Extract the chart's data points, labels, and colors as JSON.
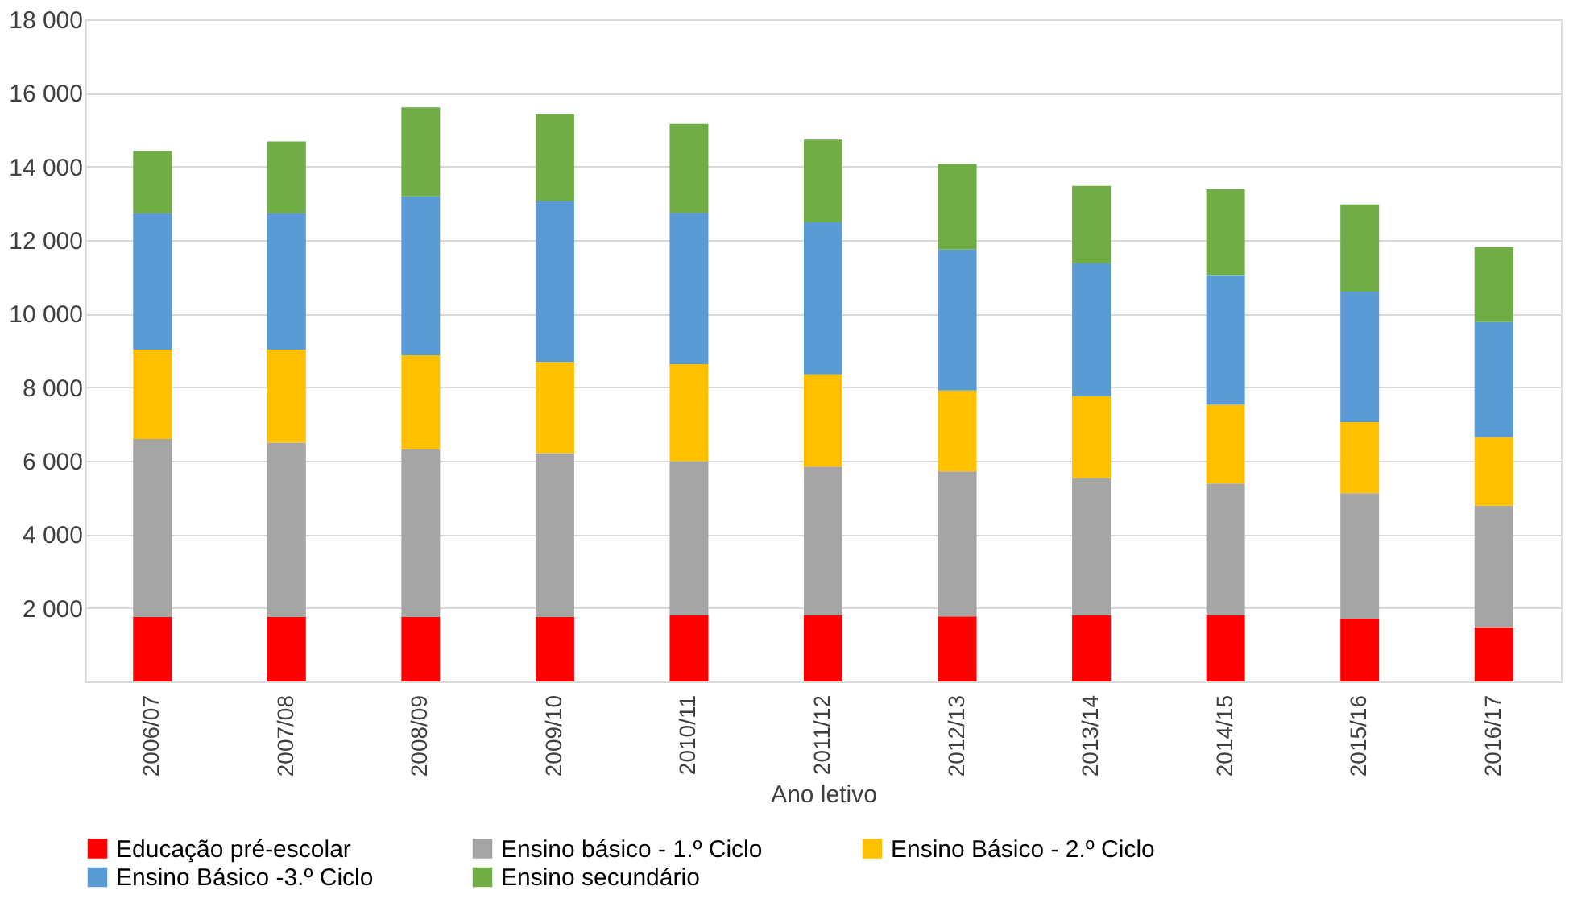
{
  "chart_data": {
    "type": "bar",
    "stacked": true,
    "xlabel": "Ano letivo",
    "categories": [
      "2006/07",
      "2007/08",
      "2008/09",
      "2009/10",
      "2010/11",
      "2011/12",
      "2012/13",
      "2013/14",
      "2014/15",
      "2015/16",
      "2016/17"
    ],
    "series": [
      {
        "name": "Educação pré-escolar",
        "color": "#ff0000",
        "values": [
          1750,
          1750,
          1750,
          1750,
          1800,
          1800,
          1770,
          1800,
          1800,
          1710,
          1470
        ]
      },
      {
        "name": "Ensino básico - 1.º Ciclo",
        "color": "#a5a5a5",
        "values": [
          4840,
          4740,
          4560,
          4460,
          4190,
          4040,
          3940,
          3730,
          3580,
          3410,
          3310
        ]
      },
      {
        "name": "Ensino Básico - 2.º Ciclo",
        "color": "#ffc000",
        "values": [
          2430,
          2530,
          2560,
          2480,
          2640,
          2510,
          2200,
          2230,
          2140,
          1930,
          1860
        ]
      },
      {
        "name": "Ensino Básico -3.º Ciclo",
        "color": "#5b9bd5",
        "values": [
          3710,
          3710,
          4320,
          4370,
          4110,
          4130,
          3830,
          3610,
          3530,
          3550,
          3130
        ]
      },
      {
        "name": "Ensino secundário",
        "color": "#70ad47",
        "values": [
          1690,
          1950,
          2420,
          2360,
          2420,
          2250,
          2330,
          2100,
          2330,
          2370,
          2040
        ]
      }
    ],
    "ylim": [
      0,
      18000
    ],
    "yticks": [
      {
        "value": 0,
        "label": null
      },
      {
        "value": 2000,
        "label": "2 000"
      },
      {
        "value": 4000,
        "label": "4 000"
      },
      {
        "value": 6000,
        "label": "6 000"
      },
      {
        "value": 8000,
        "label": "8 000"
      },
      {
        "value": 10000,
        "label": "10 000"
      },
      {
        "value": 12000,
        "label": "12 000"
      },
      {
        "value": 14000,
        "label": "14 000"
      },
      {
        "value": 16000,
        "label": "16 000"
      },
      {
        "value": 18000,
        "label": "18 000"
      }
    ],
    "grid": "y",
    "legend": "bottom"
  }
}
